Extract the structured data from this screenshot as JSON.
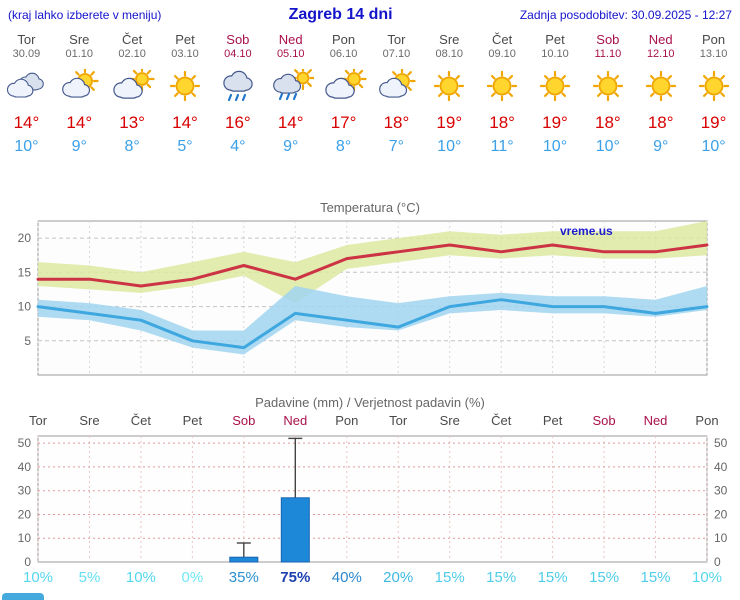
{
  "header": {
    "hint": "(kraj lahko izberete v meniju)",
    "title": "Zagreb 14 dni",
    "updated": "Zadnja posodobitev: 30.09.2025 - 12:27"
  },
  "watermark": "vreme.us",
  "days": [
    {
      "name": "Tor",
      "date": "30.09",
      "icon": "cloudy",
      "tmax": "14°",
      "tmin": "10°",
      "weekend": false
    },
    {
      "name": "Sre",
      "date": "01.10",
      "icon": "partly",
      "tmax": "14°",
      "tmin": "9°",
      "weekend": false
    },
    {
      "name": "Čet",
      "date": "02.10",
      "icon": "cloudy-sun",
      "tmax": "13°",
      "tmin": "8°",
      "weekend": false
    },
    {
      "name": "Pet",
      "date": "03.10",
      "icon": "sun",
      "tmax": "14°",
      "tmin": "5°",
      "weekend": false
    },
    {
      "name": "Sob",
      "date": "04.10",
      "icon": "rain",
      "tmax": "16°",
      "tmin": "4°",
      "weekend": true
    },
    {
      "name": "Ned",
      "date": "05.10",
      "icon": "rain-sun",
      "tmax": "14°",
      "tmin": "9°",
      "weekend": true
    },
    {
      "name": "Pon",
      "date": "06.10",
      "icon": "cloudy-sun",
      "tmax": "17°",
      "tmin": "8°",
      "weekend": false
    },
    {
      "name": "Tor",
      "date": "07.10",
      "icon": "partly",
      "tmax": "18°",
      "tmin": "7°",
      "weekend": false
    },
    {
      "name": "Sre",
      "date": "08.10",
      "icon": "sun",
      "tmax": "19°",
      "tmin": "10°",
      "weekend": false
    },
    {
      "name": "Čet",
      "date": "09.10",
      "icon": "sun",
      "tmax": "18°",
      "tmin": "11°",
      "weekend": false
    },
    {
      "name": "Pet",
      "date": "10.10",
      "icon": "sun",
      "tmax": "19°",
      "tmin": "10°",
      "weekend": false
    },
    {
      "name": "Sob",
      "date": "11.10",
      "icon": "sun",
      "tmax": "18°",
      "tmin": "10°",
      "weekend": true
    },
    {
      "name": "Ned",
      "date": "12.10",
      "icon": "sun",
      "tmax": "18°",
      "tmin": "9°",
      "weekend": true
    },
    {
      "name": "Pon",
      "date": "13.10",
      "icon": "sun",
      "tmax": "19°",
      "tmin": "10°",
      "weekend": false
    }
  ],
  "chart_data": [
    {
      "type": "line",
      "title": "Temperatura (°C)",
      "categories": [
        "Tor",
        "Sre",
        "Čet",
        "Pet",
        "Sob",
        "Ned",
        "Pon",
        "Tor",
        "Sre",
        "Čet",
        "Pet",
        "Sob",
        "Ned",
        "Pon"
      ],
      "ylabel": "°C",
      "ylim": [
        0,
        22.5
      ],
      "yticks": [
        5,
        10,
        15,
        20
      ],
      "grid": true,
      "series": [
        {
          "name": "max-temperature",
          "color": "#cc3344",
          "values": [
            14,
            14,
            13,
            14,
            16,
            14,
            17,
            18,
            19,
            18,
            19,
            18,
            18,
            19
          ]
        },
        {
          "name": "min-temperature",
          "color": "#3fa7df",
          "values": [
            10,
            9,
            8,
            5,
            4,
            9,
            8,
            7,
            10,
            11,
            10,
            10,
            9,
            10
          ]
        }
      ],
      "bands": [
        {
          "name": "max-range",
          "color": "#dce9a0",
          "upper": [
            16.5,
            16,
            15,
            16.5,
            18,
            16.5,
            19,
            20,
            21,
            20.5,
            21,
            21,
            21,
            22.5
          ],
          "lower": [
            13,
            12.5,
            12,
            13,
            14.5,
            10.5,
            15.5,
            16.5,
            17.5,
            17,
            17.5,
            17,
            17,
            17.5
          ]
        },
        {
          "name": "min-range",
          "color": "#a0d5f0",
          "upper": [
            11,
            10.5,
            9.5,
            6.5,
            6.5,
            13,
            11.5,
            10.5,
            11.5,
            12,
            11.5,
            11.5,
            11,
            13
          ],
          "lower": [
            8.5,
            8,
            6.5,
            4,
            3,
            8,
            7,
            6.5,
            9,
            9.5,
            9,
            9,
            8.5,
            9.5
          ]
        }
      ]
    },
    {
      "type": "bar",
      "title": "Padavine (mm) / Verjetnost padavin (%)",
      "categories": [
        "Tor",
        "Sre",
        "Čet",
        "Pet",
        "Sob",
        "Ned",
        "Pon",
        "Tor",
        "Sre",
        "Čet",
        "Pet",
        "Sob",
        "Ned",
        "Pon"
      ],
      "weekend": [
        false,
        false,
        false,
        false,
        true,
        true,
        false,
        false,
        false,
        false,
        false,
        true,
        true,
        false
      ],
      "ylim": [
        0,
        53
      ],
      "yticks": [
        0,
        10,
        20,
        30,
        40,
        50
      ],
      "bar_color": "#1e88d8",
      "values_mm": [
        0,
        0,
        0,
        0,
        2,
        27,
        0,
        0,
        0,
        0,
        0,
        0,
        0,
        0
      ],
      "whisker_mm": [
        0,
        0,
        0,
        0,
        8,
        52,
        0,
        0,
        0,
        0,
        0,
        0,
        0,
        0
      ],
      "probabilities": [
        "10%",
        "5%",
        "10%",
        "0%",
        "35%",
        "75%",
        "40%",
        "20%",
        "15%",
        "15%",
        "15%",
        "15%",
        "15%",
        "10%"
      ],
      "probability_colors": [
        "#54d6ee",
        "#66e0f2",
        "#54d6ee",
        "#70e8f5",
        "#2b8fd0",
        "#1b3fae",
        "#2a86cc",
        "#3fb8e0",
        "#4fcce8",
        "#4fcce8",
        "#4fcce8",
        "#4fcce8",
        "#4fcce8",
        "#54d6ee"
      ]
    }
  ],
  "colors": {
    "header_blue": "#1414cc",
    "weekend_red": "#a8114a",
    "tmax_red": "#d80000",
    "tmin_blue": "#3aa0e8"
  }
}
